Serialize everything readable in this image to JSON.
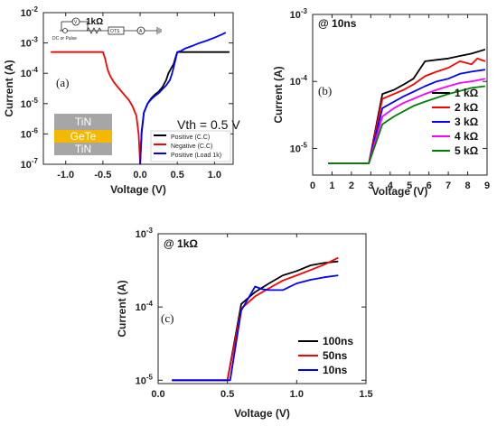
{
  "chart_data": [
    {
      "panel": "(a)",
      "type": "line",
      "xlabel": "Voltage (V)",
      "ylabel": "Current (A)",
      "y_scale": "log",
      "xlim": [
        -1.3,
        1.25
      ],
      "ylim": [
        1e-07,
        0.01
      ],
      "x_ticks": [
        -1.0,
        -0.5,
        0.0,
        0.5,
        1.0
      ],
      "x_tick_labels": [
        "-1.0",
        "-0.5",
        "0.0",
        "0.5",
        "1.0"
      ],
      "y_ticks": [
        1e-07,
        1e-06,
        1e-05,
        0.0001,
        0.001,
        0.01
      ],
      "y_tick_labels": [
        {
          "base": "10",
          "exp": "-7"
        },
        {
          "base": "10",
          "exp": "-6"
        },
        {
          "base": "10",
          "exp": "-5"
        },
        {
          "base": "10",
          "exp": "-4"
        },
        {
          "base": "10",
          "exp": "-3"
        },
        {
          "base": "10",
          "exp": "-2"
        }
      ],
      "annotations": {
        "vth": "Vth = 0.5 V",
        "circuit_source": "DC or Pulse",
        "circuit_resistor": "1kΩ",
        "circuit_device": "OTS",
        "stack_top": "TiN",
        "stack_mid": "GeTe",
        "stack_bottom": "TiN"
      },
      "legend_position": "bottom-right",
      "series": [
        {
          "name": "Positive (C.C)",
          "color": "#000000",
          "x": [
            0.0,
            0.02,
            0.05,
            0.1,
            0.15,
            0.2,
            0.25,
            0.3,
            0.35,
            0.38,
            0.42,
            0.45,
            0.47,
            0.5,
            0.55,
            0.7,
            1.2
          ],
          "y": [
            1e-07,
            1.2e-06,
            5e-06,
            1e-05,
            1.5e-05,
            2e-05,
            2.5e-05,
            3.5e-05,
            6e-05,
            0.0001,
            0.00015,
            0.0002,
            0.0003,
            0.0005,
            0.0005,
            0.0005,
            0.0005
          ]
        },
        {
          "name": "Negative (C.C)",
          "color": "#ff0000",
          "x": [
            0.0,
            -0.02,
            -0.05,
            -0.1,
            -0.15,
            -0.2,
            -0.25,
            -0.3,
            -0.35,
            -0.4,
            -0.43,
            -0.45,
            -0.47,
            -0.5,
            -0.52,
            -0.7,
            -1.2
          ],
          "y": [
            1e-07,
            1e-06,
            4e-06,
            8e-06,
            1.3e-05,
            1.8e-05,
            2.5e-05,
            3.5e-05,
            5e-05,
            8e-05,
            0.00012,
            0.00018,
            0.0003,
            0.0005,
            0.0005,
            0.0005,
            0.0005
          ]
        },
        {
          "name": "Positive (Load 1k)",
          "color": "#0000ff",
          "x": [
            0.0,
            0.02,
            0.05,
            0.1,
            0.15,
            0.2,
            0.25,
            0.3,
            0.35,
            0.4,
            0.43,
            0.47,
            0.5,
            0.55,
            0.6,
            0.7,
            0.8,
            0.9,
            1.0,
            1.1,
            1.15
          ],
          "y": [
            1e-07,
            1e-06,
            5e-06,
            1e-05,
            1.4e-05,
            1.8e-05,
            2.2e-05,
            3e-05,
            4e-05,
            6e-05,
            0.0001,
            0.00025,
            0.0005,
            0.00055,
            0.00065,
            0.0008,
            0.001,
            0.0012,
            0.0015,
            0.0019,
            0.0022
          ]
        }
      ]
    },
    {
      "panel": "(b)",
      "type": "line",
      "title": "@ 10ns",
      "xlabel": "Voltage (V)",
      "ylabel": "Current (A)",
      "y_scale": "log",
      "xlim": [
        0,
        9
      ],
      "ylim": [
        4e-06,
        0.001
      ],
      "x_ticks": [
        0,
        1,
        2,
        3,
        4,
        5,
        6,
        7,
        8,
        9
      ],
      "x_tick_labels": [
        "0",
        "1",
        "2",
        "3",
        "4",
        "5",
        "6",
        "7",
        "8",
        "9"
      ],
      "y_ticks": [
        1e-05,
        0.0001,
        0.001
      ],
      "y_tick_labels": [
        {
          "base": "10",
          "exp": "-5"
        },
        {
          "base": "10",
          "exp": "-4"
        },
        {
          "base": "10",
          "exp": "-3"
        }
      ],
      "legend_position": "right",
      "series": [
        {
          "name": "1 kΩ",
          "color": "#000000",
          "x": [
            0.8,
            2.9,
            3.6,
            4.2,
            4.7,
            5.2,
            5.8,
            6.4,
            7.0,
            7.6,
            8.2,
            8.9
          ],
          "y": [
            6e-06,
            6e-06,
            6.5e-05,
            7.5e-05,
            9e-05,
            0.00011,
            0.0002,
            0.00021,
            0.00022,
            0.00024,
            0.00026,
            0.0003
          ]
        },
        {
          "name": "2 kΩ",
          "color": "#ff0000",
          "x": [
            0.8,
            2.9,
            3.6,
            4.2,
            4.7,
            5.2,
            5.8,
            6.4,
            7.0,
            7.6,
            8.2,
            8.5,
            8.9
          ],
          "y": [
            6e-06,
            6e-06,
            5.5e-05,
            6.5e-05,
            7.5e-05,
            9e-05,
            0.00012,
            0.00014,
            0.00016,
            0.0002,
            0.00018,
            0.00022,
            0.0002
          ]
        },
        {
          "name": "3 kΩ",
          "color": "#0000ff",
          "x": [
            0.8,
            2.9,
            3.6,
            4.2,
            4.7,
            5.2,
            5.8,
            6.4,
            7.0,
            7.6,
            8.2,
            8.9
          ],
          "y": [
            6e-06,
            6e-06,
            4e-05,
            5e-05,
            6e-05,
            7e-05,
            8.5e-05,
            0.0001,
            0.00011,
            0.00013,
            0.00014,
            0.00015
          ]
        },
        {
          "name": "4 kΩ",
          "color": "#ff00ff",
          "x": [
            0.8,
            2.9,
            3.6,
            4.2,
            4.7,
            5.2,
            5.8,
            6.4,
            7.0,
            7.6,
            8.2,
            8.9
          ],
          "y": [
            6e-06,
            6e-06,
            3e-05,
            4e-05,
            4.8e-05,
            5.5e-05,
            6.5e-05,
            7.5e-05,
            8.5e-05,
            9.5e-05,
            0.0001,
            0.00011
          ]
        },
        {
          "name": "5 kΩ",
          "color": "#008000",
          "x": [
            0.8,
            2.9,
            3.6,
            4.2,
            4.7,
            5.2,
            5.8,
            6.4,
            7.0,
            7.6,
            8.2,
            8.9
          ],
          "y": [
            6e-06,
            6e-06,
            2.3e-05,
            3e-05,
            3.6e-05,
            4.3e-05,
            5e-05,
            5.7e-05,
            6.5e-05,
            7.2e-05,
            8e-05,
            8.5e-05
          ]
        }
      ]
    },
    {
      "panel": "(c)",
      "type": "line",
      "title": "@ 1kΩ",
      "xlabel": "Voltage (V)",
      "ylabel": "Current (A)",
      "y_scale": "log",
      "xlim": [
        0,
        1.5
      ],
      "ylim": [
        9e-06,
        0.001
      ],
      "x_ticks": [
        0,
        0.5,
        1.0,
        1.5
      ],
      "x_tick_labels": [
        "0.0",
        "0.5",
        "1.0",
        "1.5"
      ],
      "y_ticks": [
        1e-05,
        0.0001,
        0.001
      ],
      "y_tick_labels": [
        {
          "base": "10",
          "exp": "-5"
        },
        {
          "base": "10",
          "exp": "-4"
        },
        {
          "base": "10",
          "exp": "-3"
        }
      ],
      "legend_position": "bottom-right",
      "series": [
        {
          "name": "100ns",
          "color": "#000000",
          "x": [
            0.1,
            0.5,
            0.6,
            0.7,
            0.8,
            0.9,
            1.0,
            1.1,
            1.2,
            1.3
          ],
          "y": [
            1e-05,
            1e-05,
            0.00011,
            0.00016,
            0.00021,
            0.00027,
            0.00031,
            0.00037,
            0.0004,
            0.00042
          ]
        },
        {
          "name": "50ns",
          "color": "#ff0000",
          "x": [
            0.1,
            0.5,
            0.6,
            0.7,
            0.8,
            0.9,
            1.0,
            1.1,
            1.2,
            1.3
          ],
          "y": [
            1e-05,
            1e-05,
            9.5e-05,
            0.00014,
            0.00018,
            0.00023,
            0.00027,
            0.00032,
            0.00038,
            0.00047
          ]
        },
        {
          "name": "10ns",
          "color": "#0000ff",
          "x": [
            0.1,
            0.5,
            0.52,
            0.6,
            0.7,
            0.75,
            0.8,
            0.9,
            1.0,
            1.1,
            1.2,
            1.3
          ],
          "y": [
            1e-05,
            1e-05,
            1e-05,
            9e-05,
            0.00019,
            0.000175,
            0.00017,
            0.00017,
            0.00021,
            0.000235,
            0.000255,
            0.00027
          ]
        }
      ]
    }
  ]
}
